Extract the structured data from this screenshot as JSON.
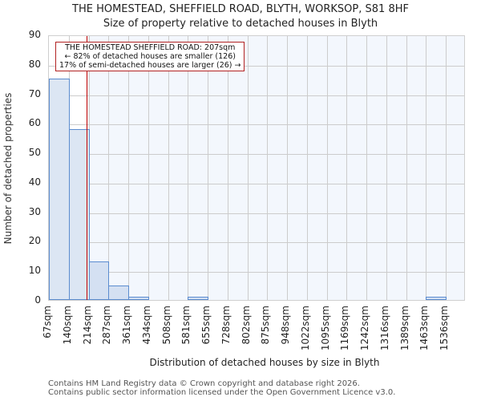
{
  "title": {
    "line1": "THE HOMESTEAD, SHEFFIELD ROAD, BLYTH, WORKSOP, S81 8HF",
    "line2": "Size of property relative to detached houses in Blyth"
  },
  "annotation": {
    "line1": "THE HOMESTEAD SHEFFIELD ROAD: 207sqm",
    "line2": "← 82% of detached houses are smaller (126)",
    "line3": "17% of semi-detached houses are larger (26) →"
  },
  "footer": {
    "line1": "Contains HM Land Registry data © Crown copyright and database right 2026.",
    "line2": "Contains public sector information licensed under the Open Government Licence v3.0."
  },
  "colors": {
    "bar_fill": "#dce6f3",
    "bar_edge": "#5b8ccf",
    "marker": "#c00000",
    "highlight_bg": "#f3f7fd",
    "grid": "#cccccc"
  },
  "chart_data": {
    "type": "bar",
    "title": "THE HOMESTEAD, SHEFFIELD ROAD, BLYTH, WORKSOP, S81 8HF — Size of property relative to detached houses in Blyth",
    "xlabel": "Distribution of detached houses by size in Blyth",
    "ylabel": "Number of detached properties",
    "categories": [
      "67sqm",
      "140sqm",
      "214sqm",
      "287sqm",
      "361sqm",
      "434sqm",
      "508sqm",
      "581sqm",
      "655sqm",
      "728sqm",
      "802sqm",
      "875sqm",
      "948sqm",
      "1022sqm",
      "1095sqm",
      "1169sqm",
      "1242sqm",
      "1316sqm",
      "1389sqm",
      "1463sqm",
      "1536sqm"
    ],
    "values": [
      75,
      58,
      13,
      5,
      1,
      0,
      0,
      1,
      0,
      0,
      0,
      0,
      0,
      0,
      0,
      0,
      0,
      0,
      0,
      1
    ],
    "ylim": [
      0,
      90
    ],
    "yticks": [
      0,
      10,
      20,
      30,
      40,
      50,
      60,
      70,
      80,
      90
    ],
    "grid": true,
    "marker_value_sqm": 207,
    "annotations": [
      "THE HOMESTEAD SHEFFIELD ROAD: 207sqm",
      "← 82% of detached houses are smaller (126)",
      "17% of semi-detached houses are larger (26) →"
    ]
  }
}
